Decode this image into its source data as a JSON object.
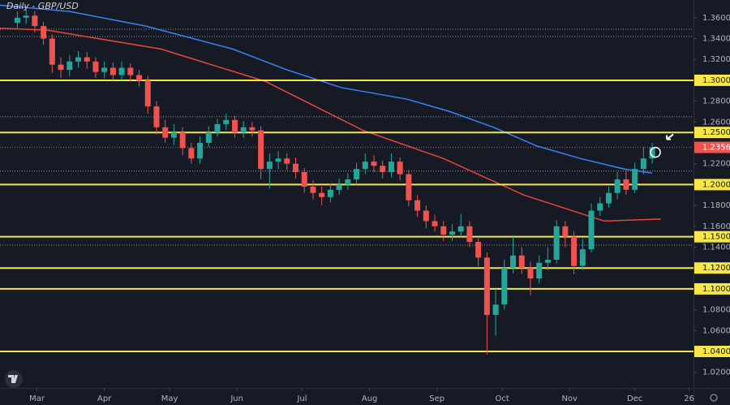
{
  "chart_data": {
    "type": "candlestick",
    "title": "Daily - GBP/USD",
    "up_color": "#26a69a",
    "down_color": "#ef5350",
    "xlim": [
      43,
      362
    ],
    "ylim": [
      1.005,
      1.377
    ],
    "xticks": [
      {
        "value": 60,
        "label": "Mar"
      },
      {
        "value": 91,
        "label": "Apr"
      },
      {
        "value": 121,
        "label": "May"
      },
      {
        "value": 152,
        "label": "Jun"
      },
      {
        "value": 182,
        "label": "Jul"
      },
      {
        "value": 213,
        "label": "Aug"
      },
      {
        "value": 244,
        "label": "Sep"
      },
      {
        "value": 274,
        "label": "Oct"
      },
      {
        "value": 305,
        "label": "Nov"
      },
      {
        "value": 335,
        "label": "Dec"
      },
      {
        "value": 360,
        "label": "26"
      }
    ],
    "yticks": [
      {
        "value": 1.36,
        "label": "1.36000"
      },
      {
        "value": 1.34,
        "label": "1.34000"
      },
      {
        "value": 1.32,
        "label": "1.32000"
      },
      {
        "value": 1.28,
        "label": "1.28000"
      },
      {
        "value": 1.26,
        "label": "1.26000"
      },
      {
        "value": 1.22,
        "label": "1.22000"
      },
      {
        "value": 1.18,
        "label": "1.18000"
      },
      {
        "value": 1.16,
        "label": "1.16000"
      },
      {
        "value": 1.14,
        "label": "1.14000"
      },
      {
        "value": 1.08,
        "label": "1.08000"
      },
      {
        "value": 1.06,
        "label": "1.06000"
      },
      {
        "value": 1.02,
        "label": "1.02000"
      }
    ],
    "grid": false,
    "level_color": "#f7e64b",
    "levels": [
      {
        "value": 1.3,
        "label": "1.30000"
      },
      {
        "value": 1.25,
        "label": "1.25000"
      },
      {
        "value": 1.2,
        "label": "1.20000"
      },
      {
        "value": 1.15,
        "label": "1.15000"
      },
      {
        "value": 1.12,
        "label": "1.12000"
      },
      {
        "value": 1.1,
        "label": "1.10000"
      },
      {
        "value": 1.04,
        "label": "1.04000"
      }
    ],
    "dotted_levels": [
      1.349,
      1.342,
      1.265,
      1.213,
      1.142
    ],
    "last_price": 1.23567,
    "last_price_color": "#ef5350",
    "x": [
      51,
      55,
      59,
      63,
      67,
      71,
      75,
      79,
      83,
      87,
      91,
      95,
      99,
      103,
      107,
      111,
      115,
      119,
      123,
      127,
      131,
      135,
      139,
      143,
      147,
      151,
      155,
      159,
      163,
      167,
      171,
      175,
      179,
      183,
      187,
      191,
      195,
      199,
      203,
      207,
      211,
      215,
      219,
      223,
      227,
      231,
      235,
      239,
      243,
      247,
      251,
      255,
      259,
      263,
      267,
      271,
      275,
      279,
      283,
      287,
      291,
      295,
      299,
      303,
      307,
      311,
      315,
      319,
      323,
      327,
      331,
      335,
      339,
      343
    ],
    "open": [
      1.355,
      1.36,
      1.362,
      1.352,
      1.34,
      1.315,
      1.31,
      1.318,
      1.322,
      1.318,
      1.308,
      1.312,
      1.305,
      1.312,
      1.305,
      1.3,
      1.275,
      1.255,
      1.245,
      1.25,
      1.235,
      1.225,
      1.24,
      1.25,
      1.258,
      1.262,
      1.25,
      1.255,
      1.252,
      1.215,
      1.222,
      1.225,
      1.22,
      1.212,
      1.198,
      1.192,
      1.188,
      1.195,
      1.2,
      1.205,
      1.215,
      1.222,
      1.218,
      1.212,
      1.222,
      1.21,
      1.185,
      1.175,
      1.165,
      1.16,
      1.152,
      1.155,
      1.16,
      1.145,
      1.13,
      1.075,
      1.085,
      1.12,
      1.132,
      1.12,
      1.11,
      1.125,
      1.128,
      1.16,
      1.15,
      1.122,
      1.138,
      1.175,
      1.182,
      1.192,
      1.205,
      1.195,
      1.215,
      1.225
    ],
    "high": [
      1.366,
      1.368,
      1.366,
      1.356,
      1.344,
      1.322,
      1.324,
      1.328,
      1.327,
      1.322,
      1.318,
      1.317,
      1.318,
      1.316,
      1.31,
      1.304,
      1.28,
      1.262,
      1.258,
      1.255,
      1.24,
      1.246,
      1.256,
      1.263,
      1.268,
      1.266,
      1.261,
      1.26,
      1.256,
      1.23,
      1.232,
      1.23,
      1.226,
      1.216,
      1.204,
      1.198,
      1.201,
      1.206,
      1.211,
      1.221,
      1.23,
      1.228,
      1.223,
      1.23,
      1.226,
      1.214,
      1.19,
      1.18,
      1.171,
      1.165,
      1.162,
      1.172,
      1.165,
      1.15,
      1.135,
      1.1,
      1.128,
      1.15,
      1.14,
      1.126,
      1.132,
      1.14,
      1.166,
      1.165,
      1.155,
      1.148,
      1.182,
      1.188,
      1.198,
      1.212,
      1.214,
      1.221,
      1.236,
      1.24
    ],
    "low": [
      1.35,
      1.354,
      1.346,
      1.334,
      1.307,
      1.302,
      1.304,
      1.312,
      1.311,
      1.302,
      1.302,
      1.3,
      1.3,
      1.299,
      1.294,
      1.268,
      1.248,
      1.24,
      1.238,
      1.228,
      1.22,
      1.22,
      1.236,
      1.246,
      1.252,
      1.245,
      1.245,
      1.246,
      1.205,
      1.196,
      1.215,
      1.214,
      1.206,
      1.192,
      1.186,
      1.18,
      1.183,
      1.19,
      1.195,
      1.2,
      1.21,
      1.212,
      1.206,
      1.207,
      1.204,
      1.179,
      1.169,
      1.158,
      1.155,
      1.146,
      1.146,
      1.15,
      1.14,
      1.122,
      1.037,
      1.055,
      1.08,
      1.115,
      1.114,
      1.094,
      1.105,
      1.118,
      1.124,
      1.14,
      1.114,
      1.118,
      1.135,
      1.17,
      1.178,
      1.186,
      1.19,
      1.192,
      1.21,
      1.22
    ],
    "close": [
      1.36,
      1.362,
      1.352,
      1.34,
      1.315,
      1.31,
      1.318,
      1.322,
      1.318,
      1.308,
      1.312,
      1.305,
      1.312,
      1.305,
      1.3,
      1.275,
      1.255,
      1.245,
      1.25,
      1.235,
      1.225,
      1.24,
      1.25,
      1.258,
      1.262,
      1.25,
      1.255,
      1.252,
      1.215,
      1.222,
      1.225,
      1.22,
      1.212,
      1.198,
      1.192,
      1.188,
      1.195,
      1.2,
      1.205,
      1.215,
      1.222,
      1.218,
      1.212,
      1.222,
      1.21,
      1.185,
      1.175,
      1.165,
      1.16,
      1.152,
      1.155,
      1.16,
      1.145,
      1.13,
      1.075,
      1.085,
      1.12,
      1.132,
      1.12,
      1.11,
      1.125,
      1.128,
      1.16,
      1.15,
      1.122,
      1.138,
      1.175,
      1.182,
      1.192,
      1.205,
      1.195,
      1.215,
      1.225,
      1.2357
    ],
    "moving_averages": [
      {
        "color": "#3b82f0",
        "x": [
          43,
          75,
          110,
          150,
          175,
          200,
          230,
          250,
          270,
          290,
          310,
          330,
          343
        ],
        "values": [
          1.372,
          1.366,
          1.352,
          1.33,
          1.31,
          1.293,
          1.282,
          1.27,
          1.255,
          1.237,
          1.225,
          1.215,
          1.211
        ]
      },
      {
        "color": "#e8453c",
        "x": [
          43,
          65,
          117,
          165,
          210,
          247,
          284,
          321,
          347
        ],
        "values": [
          1.35,
          1.348,
          1.33,
          1.299,
          1.252,
          1.225,
          1.19,
          1.165,
          1.167
        ]
      }
    ]
  }
}
